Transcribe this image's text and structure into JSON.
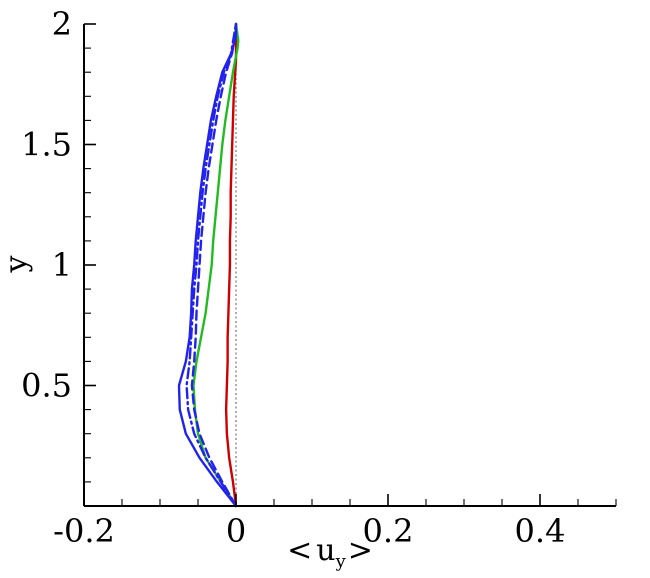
{
  "chart_data": {
    "type": "line",
    "xlabel_parts": {
      "open": "<",
      "main": "u",
      "sub": "y",
      "close": ">"
    },
    "ylabel": "y",
    "xlim": [
      -0.2,
      0.5
    ],
    "ylim": [
      0,
      2
    ],
    "x_ticks": [
      {
        "value": -0.2,
        "label": "-0.2"
      },
      {
        "value": 0,
        "label": "0"
      },
      {
        "value": 0.2,
        "label": "0.2"
      },
      {
        "value": 0.4,
        "label": "0.4"
      }
    ],
    "y_ticks": [
      {
        "value": 0.5,
        "label": "0.5"
      },
      {
        "value": 1,
        "label": "1"
      },
      {
        "value": 1.5,
        "label": "1.5"
      },
      {
        "value": 2,
        "label": "2"
      }
    ],
    "grid": false,
    "reference_line": {
      "x": 0,
      "color": "#808080",
      "style": "dotted"
    },
    "series": [
      {
        "color": "#cc0000",
        "style": "solid",
        "points": [
          [
            0,
            0
          ],
          [
            -0.004,
            0.1
          ],
          [
            -0.009,
            0.2
          ],
          [
            -0.012,
            0.3
          ],
          [
            -0.013,
            0.4
          ],
          [
            -0.012,
            0.5
          ],
          [
            -0.011,
            0.6
          ],
          [
            -0.011,
            0.7
          ],
          [
            -0.01,
            0.8
          ],
          [
            -0.009,
            0.9
          ],
          [
            -0.008,
            1.0
          ],
          [
            -0.008,
            1.1
          ],
          [
            -0.007,
            1.2
          ],
          [
            -0.007,
            1.3
          ],
          [
            -0.006,
            1.4
          ],
          [
            -0.005,
            1.5
          ],
          [
            -0.004,
            1.6
          ],
          [
            -0.003,
            1.7
          ],
          [
            -0.001,
            1.8
          ],
          [
            0,
            1.85
          ],
          [
            0,
            2.0
          ]
        ]
      },
      {
        "color": "#22bb22",
        "style": "solid",
        "points": [
          [
            0,
            0
          ],
          [
            -0.02,
            0.1
          ],
          [
            -0.04,
            0.2
          ],
          [
            -0.05,
            0.3
          ],
          [
            -0.054,
            0.4
          ],
          [
            -0.056,
            0.5
          ],
          [
            -0.052,
            0.6
          ],
          [
            -0.046,
            0.7
          ],
          [
            -0.04,
            0.8
          ],
          [
            -0.036,
            0.9
          ],
          [
            -0.032,
            1.0
          ],
          [
            -0.03,
            1.1
          ],
          [
            -0.027,
            1.2
          ],
          [
            -0.024,
            1.3
          ],
          [
            -0.021,
            1.4
          ],
          [
            -0.018,
            1.5
          ],
          [
            -0.014,
            1.6
          ],
          [
            -0.009,
            1.7
          ],
          [
            -0.004,
            1.8
          ],
          [
            0.002,
            1.9
          ],
          [
            0.003,
            1.93
          ],
          [
            0,
            2.0
          ]
        ]
      },
      {
        "color": "#2222ee",
        "style": "solid",
        "points": [
          [
            0,
            0
          ],
          [
            -0.025,
            0.1
          ],
          [
            -0.048,
            0.2
          ],
          [
            -0.066,
            0.3
          ],
          [
            -0.074,
            0.4
          ],
          [
            -0.075,
            0.5
          ],
          [
            -0.066,
            0.6
          ],
          [
            -0.061,
            0.7
          ],
          [
            -0.059,
            0.8
          ],
          [
            -0.058,
            0.9
          ],
          [
            -0.055,
            1.0
          ],
          [
            -0.053,
            1.1
          ],
          [
            -0.05,
            1.2
          ],
          [
            -0.047,
            1.3
          ],
          [
            -0.043,
            1.4
          ],
          [
            -0.038,
            1.5
          ],
          [
            -0.033,
            1.6
          ],
          [
            -0.026,
            1.7
          ],
          [
            -0.018,
            1.8
          ],
          [
            -0.006,
            1.88
          ],
          [
            0,
            1.95
          ],
          [
            0,
            2.0
          ]
        ]
      },
      {
        "color": "#2222ee",
        "style": "dashed",
        "points": [
          [
            0,
            0
          ],
          [
            -0.018,
            0.1
          ],
          [
            -0.035,
            0.2
          ],
          [
            -0.048,
            0.3
          ],
          [
            -0.055,
            0.4
          ],
          [
            -0.058,
            0.5
          ],
          [
            -0.055,
            0.6
          ],
          [
            -0.053,
            0.7
          ],
          [
            -0.052,
            0.8
          ],
          [
            -0.05,
            0.9
          ],
          [
            -0.048,
            1.0
          ],
          [
            -0.046,
            1.1
          ],
          [
            -0.043,
            1.2
          ],
          [
            -0.04,
            1.3
          ],
          [
            -0.036,
            1.4
          ],
          [
            -0.031,
            1.5
          ],
          [
            -0.026,
            1.6
          ],
          [
            -0.02,
            1.7
          ],
          [
            -0.013,
            1.8
          ],
          [
            -0.005,
            1.88
          ],
          [
            0,
            2.0
          ]
        ]
      },
      {
        "color": "#2222ee",
        "style": "dashdot",
        "points": [
          [
            0,
            0
          ],
          [
            -0.02,
            0.1
          ],
          [
            -0.04,
            0.2
          ],
          [
            -0.055,
            0.3
          ],
          [
            -0.063,
            0.4
          ],
          [
            -0.065,
            0.5
          ],
          [
            -0.061,
            0.6
          ],
          [
            -0.059,
            0.7
          ],
          [
            -0.057,
            0.8
          ],
          [
            -0.055,
            0.9
          ],
          [
            -0.052,
            1.0
          ],
          [
            -0.05,
            1.1
          ],
          [
            -0.047,
            1.2
          ],
          [
            -0.044,
            1.3
          ],
          [
            -0.04,
            1.4
          ],
          [
            -0.035,
            1.5
          ],
          [
            -0.03,
            1.6
          ],
          [
            -0.024,
            1.7
          ],
          [
            -0.016,
            1.8
          ],
          [
            -0.007,
            1.87
          ],
          [
            0,
            2.0
          ]
        ]
      }
    ]
  }
}
